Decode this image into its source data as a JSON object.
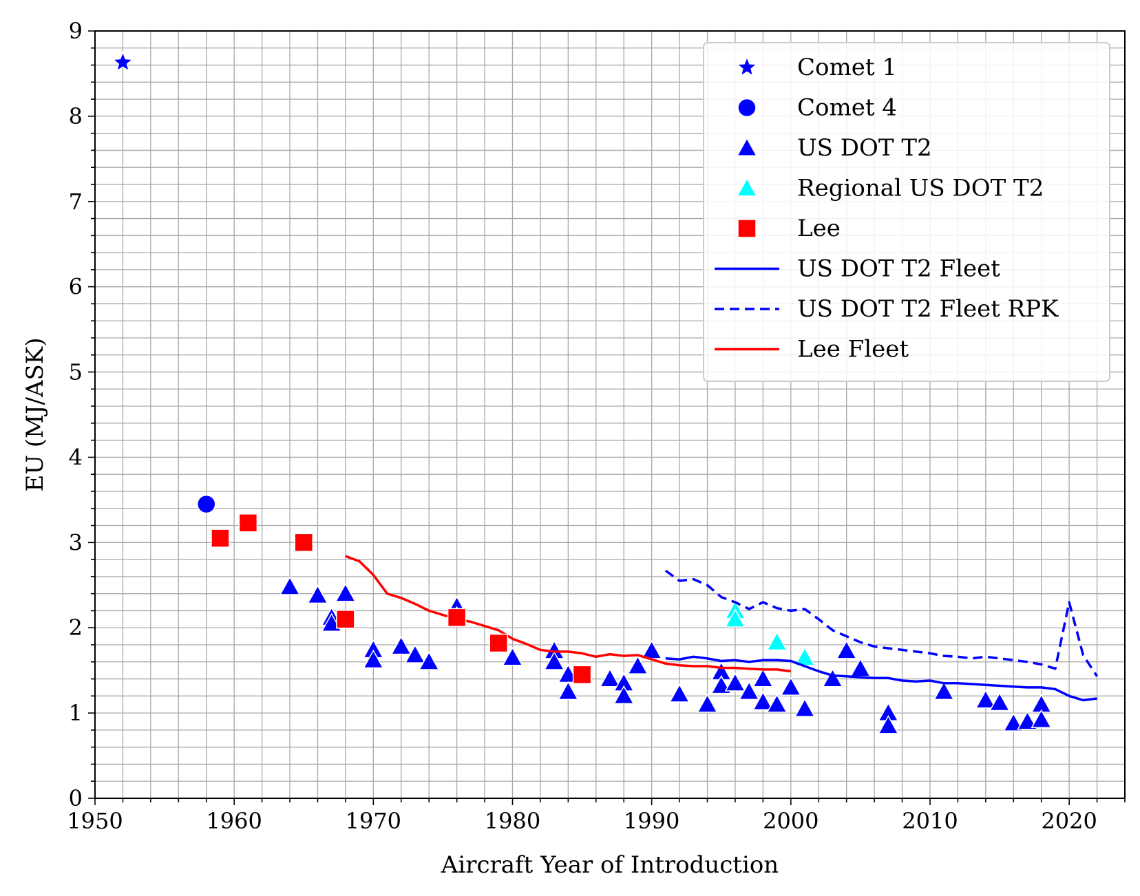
{
  "chart_data": {
    "type": "scatter",
    "title": "",
    "xlabel": "Aircraft Year of Introduction",
    "ylabel": "EU (MJ/ASK)",
    "xlim": [
      1950,
      2024
    ],
    "ylim": [
      0,
      9
    ],
    "xticks": [
      1950,
      1960,
      1970,
      1980,
      1990,
      2000,
      2010,
      2020
    ],
    "yticks": [
      0,
      1,
      2,
      3,
      4,
      5,
      6,
      7,
      8,
      9
    ],
    "grid": "major and minor",
    "legend_position": "top-right",
    "series": [
      {
        "name": "Comet 1",
        "kind": "marker",
        "marker": "star",
        "color": "#0000ff",
        "points": [
          [
            1952,
            8.63
          ]
        ]
      },
      {
        "name": "Comet 4",
        "kind": "marker",
        "marker": "circle",
        "color": "#0000ff",
        "points": [
          [
            1958,
            3.45
          ]
        ]
      },
      {
        "name": "US DOT T2",
        "kind": "marker",
        "marker": "triangle",
        "color": "#0000ff",
        "points": [
          [
            1964,
            2.48
          ],
          [
            1966,
            2.38
          ],
          [
            1967,
            2.12
          ],
          [
            1967,
            2.05
          ],
          [
            1968,
            2.4
          ],
          [
            1970,
            1.74
          ],
          [
            1970,
            1.62
          ],
          [
            1972,
            1.78
          ],
          [
            1973,
            1.68
          ],
          [
            1974,
            1.6
          ],
          [
            1976,
            2.25
          ],
          [
            1976,
            2.13
          ],
          [
            1980,
            1.65
          ],
          [
            1983,
            1.73
          ],
          [
            1983,
            1.6
          ],
          [
            1984,
            1.45
          ],
          [
            1984,
            1.25
          ],
          [
            1987,
            1.4
          ],
          [
            1988,
            1.35
          ],
          [
            1988,
            1.2
          ],
          [
            1989,
            1.55
          ],
          [
            1990,
            1.73
          ],
          [
            1992,
            1.22
          ],
          [
            1994,
            1.1
          ],
          [
            1995,
            1.48
          ],
          [
            1995,
            1.32
          ],
          [
            1996,
            1.35
          ],
          [
            1997,
            1.25
          ],
          [
            1998,
            1.4
          ],
          [
            1998,
            1.13
          ],
          [
            1999,
            1.1
          ],
          [
            2000,
            1.3
          ],
          [
            2001,
            1.05
          ],
          [
            2003,
            1.4
          ],
          [
            2004,
            1.73
          ],
          [
            2005,
            1.52
          ],
          [
            2007,
            1.0
          ],
          [
            2007,
            0.85
          ],
          [
            2011,
            1.25
          ],
          [
            2014,
            1.15
          ],
          [
            2015,
            1.12
          ],
          [
            2016,
            0.88
          ],
          [
            2017,
            0.9
          ],
          [
            2018,
            1.1
          ],
          [
            2018,
            0.92
          ]
        ]
      },
      {
        "name": "Regional US DOT T2",
        "kind": "marker",
        "marker": "triangle",
        "color": "#00ffff",
        "points": [
          [
            1996,
            2.2
          ],
          [
            1996,
            2.1
          ],
          [
            1999,
            1.83
          ],
          [
            2001,
            1.65
          ]
        ]
      },
      {
        "name": "Lee",
        "kind": "marker",
        "marker": "square",
        "color": "#ff0000",
        "points": [
          [
            1959,
            3.05
          ],
          [
            1961,
            3.23
          ],
          [
            1965,
            3.0
          ],
          [
            1968,
            2.1
          ],
          [
            1976,
            2.12
          ],
          [
            1979,
            1.82
          ],
          [
            1985,
            1.45
          ]
        ]
      },
      {
        "name": "US DOT T2 Fleet",
        "kind": "line",
        "dash": "solid",
        "color": "#0000ff",
        "points": [
          [
            1991,
            1.64
          ],
          [
            1992,
            1.63
          ],
          [
            1993,
            1.66
          ],
          [
            1994,
            1.64
          ],
          [
            1995,
            1.61
          ],
          [
            1996,
            1.62
          ],
          [
            1997,
            1.6
          ],
          [
            1998,
            1.62
          ],
          [
            1999,
            1.62
          ],
          [
            2000,
            1.61
          ],
          [
            2001,
            1.55
          ],
          [
            2002,
            1.49
          ],
          [
            2003,
            1.44
          ],
          [
            2004,
            1.43
          ],
          [
            2005,
            1.42
          ],
          [
            2006,
            1.41
          ],
          [
            2007,
            1.41
          ],
          [
            2008,
            1.38
          ],
          [
            2009,
            1.37
          ],
          [
            2010,
            1.38
          ],
          [
            2011,
            1.35
          ],
          [
            2012,
            1.35
          ],
          [
            2013,
            1.34
          ],
          [
            2014,
            1.33
          ],
          [
            2015,
            1.32
          ],
          [
            2016,
            1.31
          ],
          [
            2017,
            1.3
          ],
          [
            2018,
            1.3
          ],
          [
            2019,
            1.28
          ],
          [
            2020,
            1.2
          ],
          [
            2021,
            1.15
          ],
          [
            2022,
            1.17
          ]
        ]
      },
      {
        "name": "US DOT T2 Fleet RPK",
        "kind": "line",
        "dash": "dashed",
        "color": "#0000ff",
        "points": [
          [
            1991,
            2.67
          ],
          [
            1992,
            2.55
          ],
          [
            1993,
            2.57
          ],
          [
            1994,
            2.5
          ],
          [
            1995,
            2.36
          ],
          [
            1996,
            2.3
          ],
          [
            1997,
            2.22
          ],
          [
            1998,
            2.3
          ],
          [
            1999,
            2.23
          ],
          [
            2000,
            2.2
          ],
          [
            2001,
            2.22
          ],
          [
            2002,
            2.1
          ],
          [
            2003,
            1.97
          ],
          [
            2004,
            1.9
          ],
          [
            2005,
            1.83
          ],
          [
            2006,
            1.78
          ],
          [
            2007,
            1.76
          ],
          [
            2008,
            1.74
          ],
          [
            2009,
            1.72
          ],
          [
            2010,
            1.7
          ],
          [
            2011,
            1.67
          ],
          [
            2012,
            1.66
          ],
          [
            2013,
            1.64
          ],
          [
            2014,
            1.66
          ],
          [
            2015,
            1.64
          ],
          [
            2016,
            1.62
          ],
          [
            2017,
            1.6
          ],
          [
            2018,
            1.57
          ],
          [
            2019,
            1.52
          ],
          [
            2020,
            2.3
          ],
          [
            2021,
            1.68
          ],
          [
            2022,
            1.43
          ]
        ]
      },
      {
        "name": "Lee Fleet",
        "kind": "line",
        "dash": "solid",
        "color": "#ff0000",
        "points": [
          [
            1968,
            2.84
          ],
          [
            1969,
            2.78
          ],
          [
            1970,
            2.62
          ],
          [
            1971,
            2.4
          ],
          [
            1972,
            2.35
          ],
          [
            1973,
            2.28
          ],
          [
            1974,
            2.2
          ],
          [
            1975,
            2.15
          ],
          [
            1976,
            2.1
          ],
          [
            1977,
            2.07
          ],
          [
            1978,
            2.02
          ],
          [
            1979,
            1.97
          ],
          [
            1980,
            1.87
          ],
          [
            1981,
            1.81
          ],
          [
            1982,
            1.74
          ],
          [
            1983,
            1.72
          ],
          [
            1984,
            1.72
          ],
          [
            1985,
            1.7
          ],
          [
            1986,
            1.66
          ],
          [
            1987,
            1.69
          ],
          [
            1988,
            1.67
          ],
          [
            1989,
            1.68
          ],
          [
            1990,
            1.63
          ],
          [
            1991,
            1.58
          ],
          [
            1992,
            1.56
          ],
          [
            1993,
            1.55
          ],
          [
            1994,
            1.55
          ],
          [
            1995,
            1.53
          ],
          [
            1996,
            1.53
          ],
          [
            1997,
            1.52
          ],
          [
            1998,
            1.51
          ],
          [
            1999,
            1.51
          ],
          [
            2000,
            1.49
          ]
        ]
      }
    ]
  }
}
